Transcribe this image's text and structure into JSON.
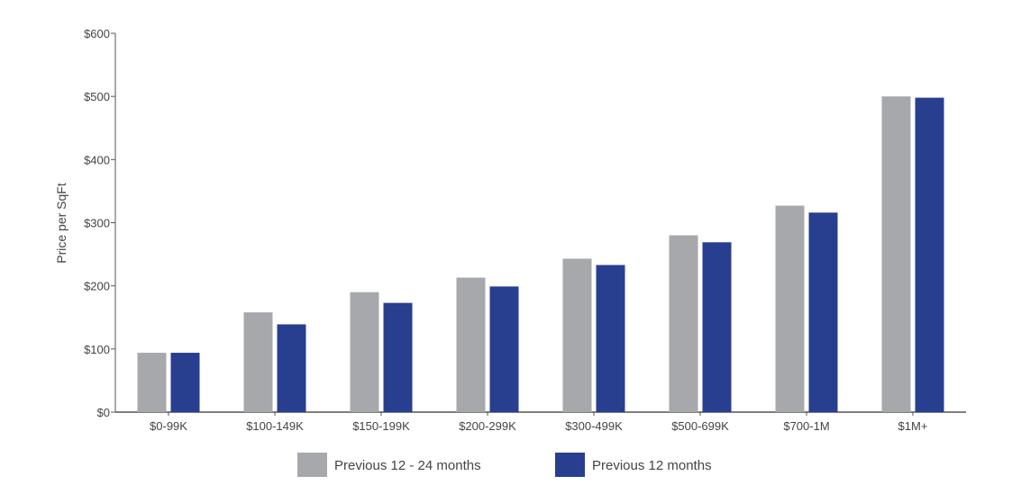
{
  "chart_data": {
    "type": "bar",
    "title": "",
    "xlabel": "",
    "ylabel": "Price per SqFt",
    "ylim": [
      0,
      600
    ],
    "yticks": [
      0,
      100,
      200,
      300,
      400,
      500,
      600
    ],
    "ytick_labels": [
      "$0",
      "$100",
      "$200",
      "$300",
      "$400",
      "$500",
      "$600"
    ],
    "categories": [
      "$0-99K",
      "$100-149K",
      "$150-199K",
      "$200-299K",
      "$300-499K",
      "$500-699K",
      "$700-1M",
      "$1M+"
    ],
    "series": [
      {
        "name": "Previous 12 - 24 months",
        "color": "#a7a8ac",
        "values": [
          94,
          158,
          190,
          213,
          243,
          280,
          327,
          500
        ]
      },
      {
        "name": "Previous 12 months",
        "color": "#283e8f",
        "values": [
          94,
          139,
          173,
          199,
          233,
          269,
          316,
          498
        ]
      }
    ],
    "grid": false,
    "legend_position": "bottom-center"
  }
}
